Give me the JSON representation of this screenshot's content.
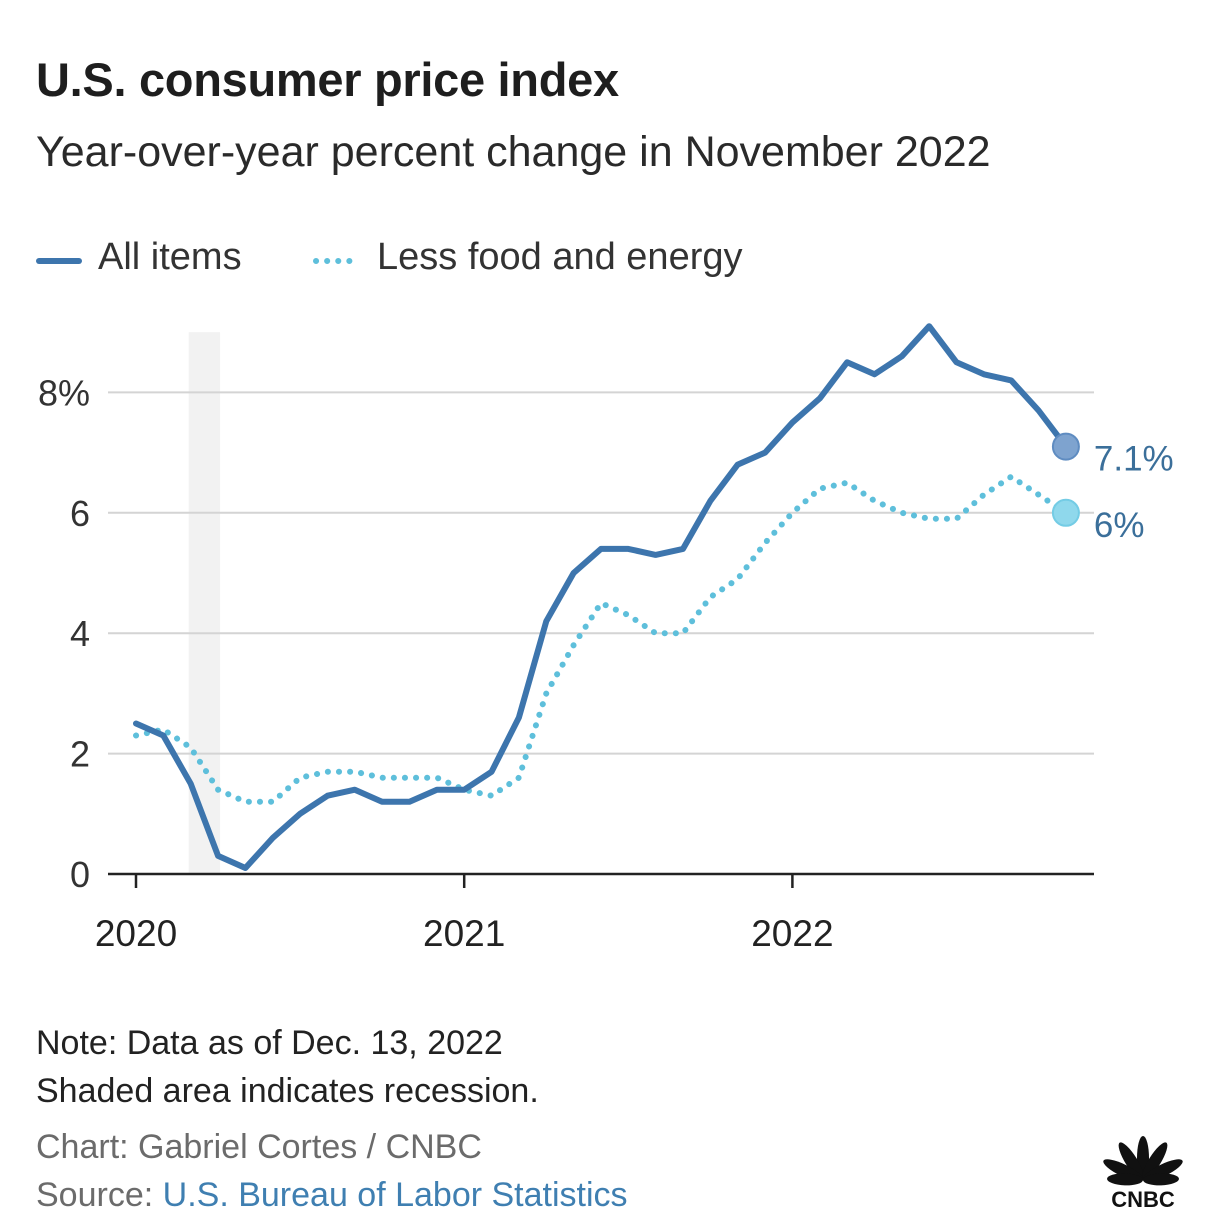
{
  "header": {
    "title": "U.S. consumer price index",
    "subtitle": "Year-over-year percent change in November 2022"
  },
  "legend": {
    "items": [
      {
        "label": "All items",
        "style": "solid",
        "color": "#3d75ad"
      },
      {
        "label": "Less food and energy",
        "style": "dotted",
        "color": "#5ebfdb"
      }
    ]
  },
  "chart_data": {
    "type": "line",
    "x_tick_labels": [
      "2020",
      "2021",
      "2022"
    ],
    "y_tick_labels": [
      "0",
      "2",
      "4",
      "6",
      "8%"
    ],
    "y_ticks": [
      0,
      2,
      4,
      6,
      8
    ],
    "ylim": [
      0,
      9
    ],
    "x_dates": [
      "2020-01",
      "2020-02",
      "2020-03",
      "2020-04",
      "2020-05",
      "2020-06",
      "2020-07",
      "2020-08",
      "2020-09",
      "2020-10",
      "2020-11",
      "2020-12",
      "2021-01",
      "2021-02",
      "2021-03",
      "2021-04",
      "2021-05",
      "2021-06",
      "2021-07",
      "2021-08",
      "2021-09",
      "2021-10",
      "2021-11",
      "2021-12",
      "2022-01",
      "2022-02",
      "2022-03",
      "2022-04",
      "2022-05",
      "2022-06",
      "2022-07",
      "2022-08",
      "2022-09",
      "2022-10",
      "2022-11"
    ],
    "recession": {
      "start": "2020-03",
      "end": "2020-04"
    },
    "series": [
      {
        "name": "All items",
        "color": "#3d75ad",
        "style": "solid",
        "end_label": "7.1%",
        "values": [
          2.5,
          2.3,
          1.5,
          0.3,
          0.1,
          0.6,
          1.0,
          1.3,
          1.4,
          1.2,
          1.2,
          1.4,
          1.4,
          1.7,
          2.6,
          4.2,
          5.0,
          5.4,
          5.4,
          5.3,
          5.4,
          6.2,
          6.8,
          7.0,
          7.5,
          7.9,
          8.5,
          8.3,
          8.6,
          9.1,
          8.5,
          8.3,
          8.2,
          7.7,
          7.1
        ]
      },
      {
        "name": "Less food and energy",
        "color": "#5ebfdb",
        "style": "dotted",
        "end_label": "6%",
        "values": [
          2.3,
          2.4,
          2.1,
          1.4,
          1.2,
          1.2,
          1.6,
          1.7,
          1.7,
          1.6,
          1.6,
          1.6,
          1.4,
          1.3,
          1.6,
          3.0,
          3.8,
          4.5,
          4.3,
          4.0,
          4.0,
          4.6,
          4.9,
          5.5,
          6.0,
          6.4,
          6.5,
          6.2,
          6.0,
          5.9,
          5.9,
          6.3,
          6.6,
          6.3,
          6.0
        ]
      }
    ]
  },
  "footer": {
    "note": "Note: Data as of Dec. 13, 2022",
    "shading_note": "Shaded area indicates recession.",
    "chart_credit": "Chart: Gabriel Cortes / CNBC",
    "source_label": "Source:",
    "source_name": "U.S. Bureau of Labor Statistics",
    "logo_text": "CNBC"
  },
  "colors": {
    "all_items": "#3d75ad",
    "core": "#5ebfdb",
    "grid": "#d4d4d4",
    "recession": "#f2f2f2",
    "source_link": "#3f7fb1"
  }
}
